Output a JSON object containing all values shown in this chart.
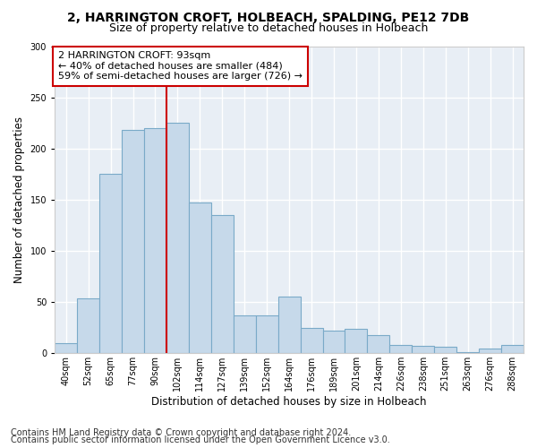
{
  "title1": "2, HARRINGTON CROFT, HOLBEACH, SPALDING, PE12 7DB",
  "title2": "Size of property relative to detached houses in Holbeach",
  "xlabel": "Distribution of detached houses by size in Holbeach",
  "ylabel": "Number of detached properties",
  "categories": [
    "40sqm",
    "52sqm",
    "65sqm",
    "77sqm",
    "90sqm",
    "102sqm",
    "114sqm",
    "127sqm",
    "139sqm",
    "152sqm",
    "164sqm",
    "176sqm",
    "189sqm",
    "201sqm",
    "214sqm",
    "226sqm",
    "238sqm",
    "251sqm",
    "263sqm",
    "276sqm",
    "288sqm"
  ],
  "values": [
    10,
    54,
    175,
    218,
    220,
    225,
    147,
    135,
    37,
    37,
    55,
    25,
    22,
    24,
    18,
    8,
    7,
    6,
    1,
    5,
    8
  ],
  "bar_color": "#c6d9ea",
  "bar_edge_color": "#7aaac8",
  "red_line_x": 4.5,
  "marker_color": "#cc0000",
  "annotation_text": "2 HARRINGTON CROFT: 93sqm\n← 40% of detached houses are smaller (484)\n59% of semi-detached houses are larger (726) →",
  "annotation_box_color": "white",
  "annotation_box_edge_color": "#cc0000",
  "ylim": [
    0,
    300
  ],
  "yticks": [
    0,
    50,
    100,
    150,
    200,
    250,
    300
  ],
  "footer1": "Contains HM Land Registry data © Crown copyright and database right 2024.",
  "footer2": "Contains public sector information licensed under the Open Government Licence v3.0.",
  "bg_color": "#ffffff",
  "plot_bg_color": "#e8eef5",
  "title_fontsize": 10,
  "subtitle_fontsize": 9,
  "tick_fontsize": 7,
  "label_fontsize": 8.5,
  "footer_fontsize": 7,
  "annotation_fontsize": 8
}
